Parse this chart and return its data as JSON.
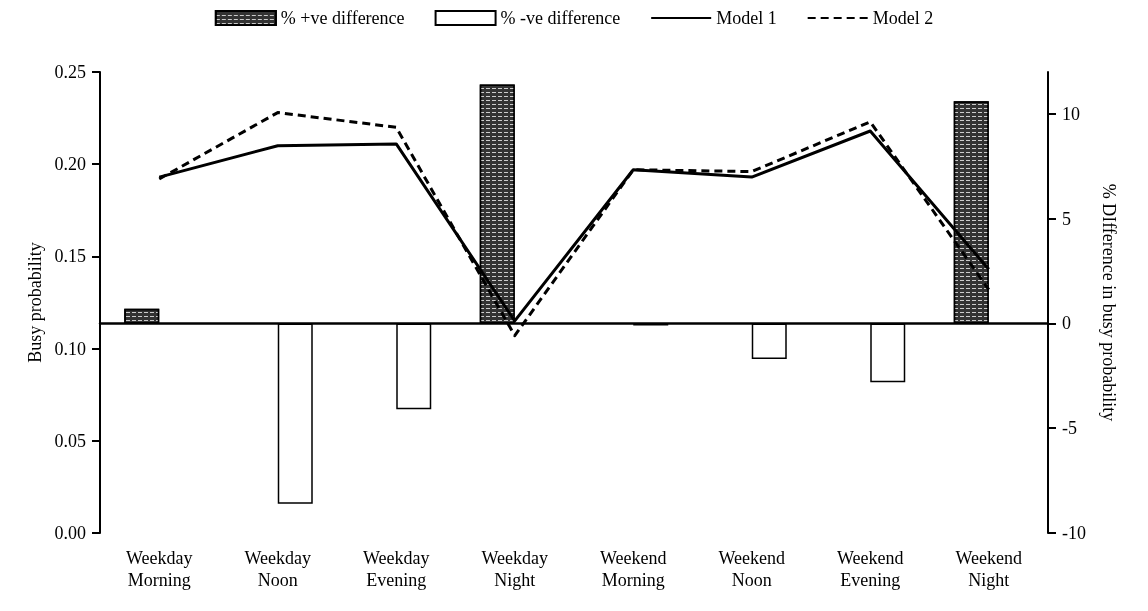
{
  "chart_data": {
    "type": "bar",
    "categories": [
      "Weekday\nMorning",
      "Weekday\nNoon",
      "Weekday\nEvening",
      "Weekday\nNight",
      "Weekend\nMorning",
      "Weekend\nNoon",
      "Weekend\nEvening",
      "Weekend\nNight"
    ],
    "ylabel": "Busy probability",
    "y2label": "% DIfference in busy probability",
    "ylim": [
      0,
      0.25
    ],
    "yticks": [
      {
        "value": 0,
        "label": "0.00"
      },
      {
        "value": 0.05,
        "label": "0.05"
      },
      {
        "value": 0.1,
        "label": "0.10"
      },
      {
        "value": 0.15,
        "label": "0.15"
      },
      {
        "value": 0.2,
        "label": "0.20"
      },
      {
        "value": 0.25,
        "label": "0.25"
      }
    ],
    "y2lim": [
      -10,
      12
    ],
    "y2ticks": [
      -10,
      -5,
      0,
      5,
      10
    ],
    "legend": "top",
    "series": [
      {
        "name": "% +ve difference",
        "axis": "y2",
        "color": "#333333",
        "values": [
          0.7,
          null,
          null,
          11.4,
          null,
          null,
          null,
          10.6
        ]
      },
      {
        "name": "% -ve difference",
        "axis": "y2",
        "color": "#ffffff",
        "values": [
          null,
          -8.6,
          -4.1,
          null,
          -0.1,
          -1.7,
          -2.8,
          null
        ]
      },
      {
        "name": "Model 1",
        "type": "line",
        "color": "#000000",
        "line_style": "solid",
        "marker": "none",
        "values": [
          0.193,
          0.21,
          0.211,
          0.115,
          0.197,
          0.193,
          0.218,
          0.143
        ]
      },
      {
        "name": "Model 2",
        "type": "line",
        "color": "#000000",
        "line_style": "dashed",
        "marker": "none",
        "values": [
          0.192,
          0.228,
          0.22,
          0.107,
          0.197,
          0.196,
          0.223,
          0.132
        ]
      }
    ]
  }
}
